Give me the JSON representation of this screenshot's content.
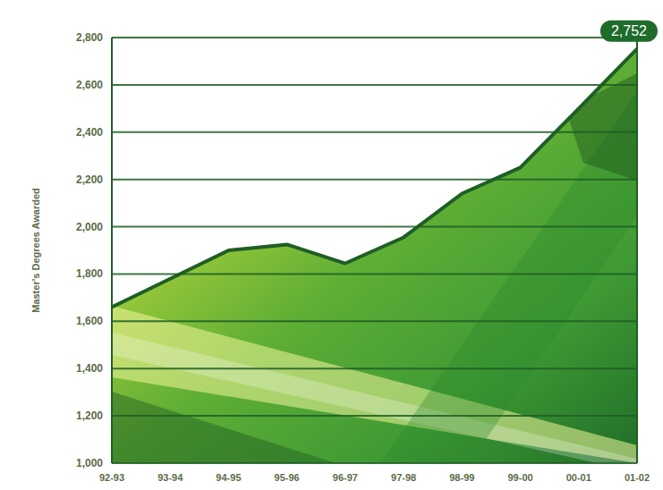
{
  "chart_data": {
    "type": "area",
    "y_label": "Master's Degrees Awarded",
    "categories": [
      "92-93",
      "93-94",
      "94-95",
      "95-96",
      "96-97",
      "97-98",
      "98-99",
      "99-00",
      "00-01",
      "01-02"
    ],
    "values": [
      1660,
      1780,
      1900,
      1925,
      1845,
      1955,
      2140,
      2250,
      2500,
      2752
    ],
    "value_labels": [
      null,
      null,
      null,
      null,
      null,
      null,
      null,
      null,
      null,
      "2,752"
    ],
    "data_labels": true,
    "color": "#1f5e25",
    "ylim": [
      1000,
      2800
    ],
    "yticks": [
      {
        "value": 1000,
        "label": "1,000"
      },
      {
        "value": 1200,
        "label": "1,200"
      },
      {
        "value": 1400,
        "label": "1,400"
      },
      {
        "value": 1600,
        "label": "1,600"
      },
      {
        "value": 1800,
        "label": "1,800"
      },
      {
        "value": 2000,
        "label": "2,000"
      },
      {
        "value": 2200,
        "label": "2,200"
      },
      {
        "value": 2400,
        "label": "2,400"
      },
      {
        "value": 2600,
        "label": "2,600"
      },
      {
        "value": 2800,
        "label": "2,800"
      }
    ],
    "grid": true
  }
}
